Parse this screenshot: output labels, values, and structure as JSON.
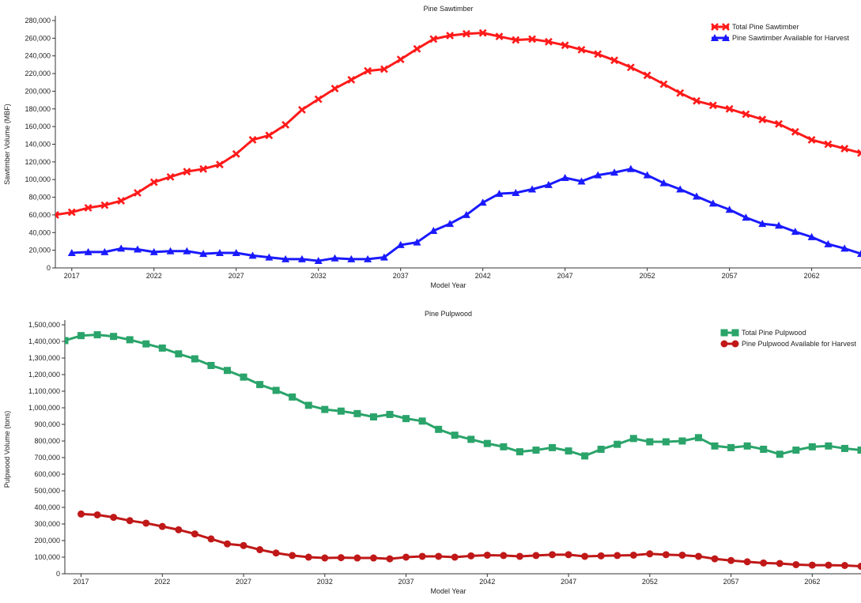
{
  "chart_data": [
    {
      "type": "line",
      "title": "Pine Sawtimber",
      "xlabel": "Model Year",
      "ylabel": "Sawtimber Volume (MBF)",
      "xlim": [
        2016,
        2065
      ],
      "ylim": [
        0,
        280000
      ],
      "x_ticks": [
        2017,
        2022,
        2027,
        2032,
        2037,
        2042,
        2047,
        2052,
        2057,
        2062
      ],
      "y_ticks": [
        0,
        20000,
        40000,
        60000,
        80000,
        100000,
        120000,
        140000,
        160000,
        180000,
        200000,
        220000,
        240000,
        260000,
        280000
      ],
      "y_tick_labels": [
        "0",
        "20,000",
        "40,000",
        "60,000",
        "80,000",
        "100,000",
        "120,000",
        "140,000",
        "160,000",
        "180,000",
        "200,000",
        "220,000",
        "240,000",
        "260,000",
        "280,000"
      ],
      "x_tick_labels": [
        "2017",
        "2022",
        "2027",
        "2032",
        "2037",
        "2042",
        "2047",
        "2052",
        "2057",
        "2062"
      ],
      "grid": false,
      "legend_position": "top-right",
      "x": [
        2016,
        2017,
        2018,
        2019,
        2020,
        2021,
        2022,
        2023,
        2024,
        2025,
        2026,
        2027,
        2028,
        2029,
        2030,
        2031,
        2032,
        2033,
        2034,
        2035,
        2036,
        2037,
        2038,
        2039,
        2040,
        2041,
        2042,
        2043,
        2044,
        2045,
        2046,
        2047,
        2048,
        2049,
        2050,
        2051,
        2052,
        2053,
        2054,
        2055,
        2056,
        2057,
        2058,
        2059,
        2060,
        2061,
        2062,
        2063,
        2064,
        2065
      ],
      "series": [
        {
          "name": "Total Pine Sawtimber",
          "color": "#ff1a1a",
          "marker": "x",
          "values": [
            60000,
            63000,
            68000,
            71000,
            76000,
            85000,
            97000,
            103000,
            109000,
            112000,
            117000,
            129000,
            145000,
            150000,
            162000,
            179000,
            191000,
            203000,
            213000,
            223000,
            225000,
            236000,
            248000,
            259000,
            263000,
            265000,
            266000,
            262000,
            258000,
            259000,
            256000,
            252000,
            247000,
            242000,
            235000,
            227000,
            218000,
            208000,
            198000,
            189000,
            184000,
            180000,
            174000,
            168000,
            163000,
            154000,
            145000,
            140000,
            135000,
            130000
          ]
        },
        {
          "name": "Pine Sawtimber Available for Harvest",
          "color": "#1a1aff",
          "marker": "triangle",
          "values": [
            null,
            17000,
            18000,
            18000,
            22000,
            21000,
            18000,
            19000,
            19000,
            16000,
            17000,
            17000,
            14000,
            12000,
            10000,
            10000,
            8000,
            11000,
            10000,
            10000,
            12000,
            26000,
            29000,
            42000,
            50000,
            60000,
            74000,
            84000,
            85000,
            89000,
            94000,
            102000,
            98000,
            105000,
            108000,
            112000,
            105000,
            96000,
            89000,
            81000,
            73000,
            66000,
            57000,
            50000,
            48000,
            41000,
            35000,
            27000,
            22000,
            16000
          ]
        }
      ]
    },
    {
      "type": "line",
      "title": "Pine Pulpwood",
      "xlabel": "Model Year",
      "ylabel": "Pulpwood Volume (tons)",
      "xlim": [
        2016,
        2065
      ],
      "ylim": [
        0,
        1500000
      ],
      "x_ticks": [
        2017,
        2022,
        2027,
        2032,
        2037,
        2042,
        2047,
        2052,
        2057,
        2062
      ],
      "y_ticks": [
        0,
        100000,
        200000,
        300000,
        400000,
        500000,
        600000,
        700000,
        800000,
        900000,
        1000000,
        1100000,
        1200000,
        1300000,
        1400000,
        1500000
      ],
      "y_tick_labels": [
        "0",
        "100,000",
        "200,000",
        "300,000",
        "400,000",
        "500,000",
        "600,000",
        "700,000",
        "800,000",
        "900,000",
        "1,000,000",
        "1,100,000",
        "1,200,000",
        "1,300,000",
        "1,400,000",
        "1,500,000"
      ],
      "x_tick_labels": [
        "2017",
        "2022",
        "2027",
        "2032",
        "2037",
        "2042",
        "2047",
        "2052",
        "2057",
        "2062"
      ],
      "grid": false,
      "legend_position": "top-right",
      "x": [
        2016,
        2017,
        2018,
        2019,
        2020,
        2021,
        2022,
        2023,
        2024,
        2025,
        2026,
        2027,
        2028,
        2029,
        2030,
        2031,
        2032,
        2033,
        2034,
        2035,
        2036,
        2037,
        2038,
        2039,
        2040,
        2041,
        2042,
        2043,
        2044,
        2045,
        2046,
        2047,
        2048,
        2049,
        2050,
        2051,
        2052,
        2053,
        2054,
        2055,
        2056,
        2057,
        2058,
        2059,
        2060,
        2061,
        2062,
        2063,
        2064,
        2065
      ],
      "series": [
        {
          "name": "Total Pine Pulpwood",
          "color": "#2aa46a",
          "marker": "square",
          "values": [
            1405000,
            1435000,
            1440000,
            1430000,
            1410000,
            1385000,
            1360000,
            1325000,
            1295000,
            1255000,
            1225000,
            1185000,
            1140000,
            1105000,
            1065000,
            1015000,
            990000,
            980000,
            965000,
            945000,
            960000,
            935000,
            920000,
            870000,
            835000,
            810000,
            785000,
            765000,
            735000,
            745000,
            760000,
            740000,
            710000,
            750000,
            780000,
            815000,
            795000,
            795000,
            800000,
            820000,
            770000,
            760000,
            770000,
            750000,
            720000,
            745000,
            765000,
            770000,
            755000,
            745000
          ]
        },
        {
          "name": "Pine Pulpwood Available for Harvest",
          "color": "#c01818",
          "marker": "circle",
          "values": [
            null,
            360000,
            355000,
            340000,
            320000,
            305000,
            285000,
            265000,
            240000,
            210000,
            180000,
            170000,
            145000,
            125000,
            110000,
            100000,
            95000,
            97000,
            95000,
            95000,
            90000,
            100000,
            105000,
            105000,
            100000,
            108000,
            112000,
            110000,
            105000,
            110000,
            115000,
            115000,
            105000,
            108000,
            110000,
            112000,
            120000,
            115000,
            112000,
            105000,
            90000,
            80000,
            72000,
            65000,
            62000,
            55000,
            52000,
            52000,
            50000,
            45000
          ]
        }
      ]
    }
  ]
}
